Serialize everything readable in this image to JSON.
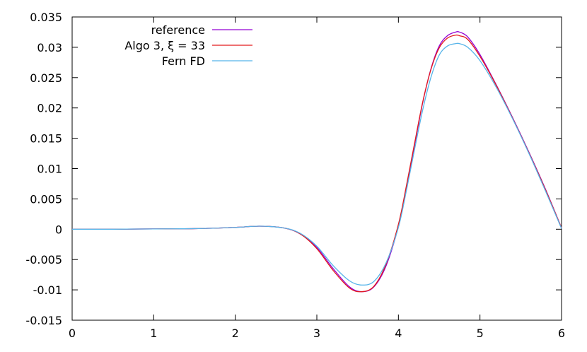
{
  "chart_data": {
    "type": "line",
    "title": "",
    "xlabel": "",
    "ylabel": "",
    "xlim": [
      0,
      6
    ],
    "ylim": [
      -0.015,
      0.035
    ],
    "x_ticks": [
      0,
      1,
      2,
      3,
      4,
      5,
      6
    ],
    "x_tick_labels": [
      "0",
      "1",
      "2",
      "3",
      "4",
      "5",
      "6"
    ],
    "y_ticks": [
      -0.015,
      -0.01,
      -0.005,
      0,
      0.005,
      0.01,
      0.015,
      0.02,
      0.025,
      0.03,
      0.035
    ],
    "y_tick_labels": [
      "-0.015",
      "-0.01",
      "-0.005",
      "0",
      "0.005",
      "0.01",
      "0.015",
      "0.02",
      "0.025",
      "0.03",
      "0.035"
    ],
    "grid": false,
    "legend_position": "top-left",
    "series": [
      {
        "name": "reference",
        "color": "#9400d3",
        "x": [
          0,
          0.5,
          1,
          1.5,
          2,
          2.3,
          2.6,
          2.8,
          3,
          3.2,
          3.4,
          3.55,
          3.7,
          3.85,
          4,
          4.1,
          4.2,
          4.3,
          4.4,
          4.5,
          4.6,
          4.7,
          4.75,
          4.85,
          5,
          5.2,
          5.4,
          5.6,
          5.8,
          6
        ],
        "y": [
          0,
          0,
          5e-05,
          0.0001,
          0.0003,
          0.0005,
          0.0002,
          -0.0008,
          -0.003,
          -0.0065,
          -0.0095,
          -0.0103,
          -0.0095,
          -0.006,
          0.0005,
          0.007,
          0.014,
          0.021,
          0.0265,
          0.0302,
          0.0319,
          0.0325,
          0.0325,
          0.0317,
          0.0288,
          0.0238,
          0.0184,
          0.0127,
          0.0067,
          0.0002
        ]
      },
      {
        "name": "Algo 3, ξ = 33",
        "color": "#e41a1c",
        "x": [
          0,
          0.5,
          1,
          1.5,
          2,
          2.3,
          2.6,
          2.8,
          3,
          3.2,
          3.4,
          3.55,
          3.7,
          3.85,
          4,
          4.1,
          4.2,
          4.3,
          4.4,
          4.5,
          4.6,
          4.7,
          4.75,
          4.85,
          5,
          5.2,
          5.4,
          5.6,
          5.8,
          6
        ],
        "y": [
          0,
          0,
          5e-05,
          0.0001,
          0.0003,
          0.0005,
          0.0002,
          -0.0008,
          -0.0032,
          -0.0068,
          -0.0097,
          -0.0103,
          -0.0094,
          -0.0057,
          0.0008,
          0.0073,
          0.0143,
          0.0211,
          0.0264,
          0.0299,
          0.0315,
          0.032,
          0.0319,
          0.0313,
          0.0285,
          0.0237,
          0.0183,
          0.0126,
          0.0066,
          0.0002
        ]
      },
      {
        "name": "Fern FD",
        "color": "#56b4e9",
        "x": [
          0,
          0.5,
          1,
          1.5,
          2,
          2.3,
          2.6,
          2.8,
          3,
          3.2,
          3.4,
          3.55,
          3.7,
          3.85,
          4,
          4.1,
          4.2,
          4.3,
          4.4,
          4.5,
          4.6,
          4.7,
          4.75,
          4.85,
          5,
          5.2,
          5.4,
          5.6,
          5.8,
          6
        ],
        "y": [
          0,
          0,
          5e-05,
          0.0001,
          0.0003,
          0.0005,
          0.0002,
          -0.0007,
          -0.0028,
          -0.006,
          -0.0085,
          -0.0092,
          -0.0086,
          -0.0055,
          0.0003,
          0.0065,
          0.0133,
          0.0198,
          0.0251,
          0.0287,
          0.0302,
          0.0306,
          0.0306,
          0.03,
          0.0278,
          0.0234,
          0.0182,
          0.0125,
          0.0064,
          0.0001
        ]
      }
    ]
  }
}
